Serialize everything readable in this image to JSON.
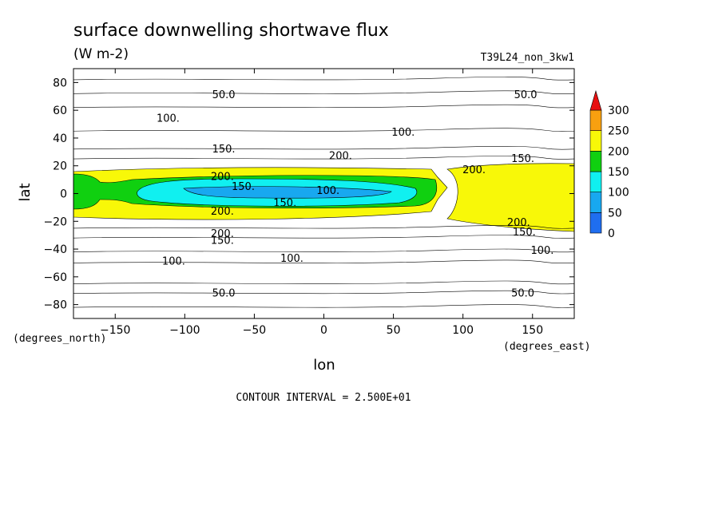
{
  "chart_data": {
    "type": "heatmap",
    "title": "surface downwelling shortwave flux",
    "subtitle": "(W m-2)",
    "run_label": "T39L24_non_3kw1",
    "xlabel": "lon",
    "ylabel": "lat",
    "x_unit_label": "(degrees_east)",
    "y_unit_label": "(degrees_north)",
    "xlim": [
      -180,
      180
    ],
    "ylim": [
      -90,
      90
    ],
    "x_ticks": [
      -150,
      -100,
      -50,
      0,
      50,
      100,
      150
    ],
    "y_ticks": [
      -80,
      -60,
      -40,
      -20,
      0,
      20,
      40,
      60,
      80
    ],
    "footer": "CONTOUR INTERVAL = 2.500E+01",
    "colorbar": {
      "levels": [
        0,
        50,
        100,
        150,
        200,
        250,
        300
      ],
      "colors": [
        "#1f6ef0",
        "#18a8f0",
        "#10f0f0",
        "#10d010",
        "#f8f808",
        "#f8a010"
      ],
      "overflow_color": "#e81010"
    },
    "zonal_bands": [
      {
        "lat_from": 80,
        "lat_to": 90,
        "value_class": 0
      },
      {
        "lat_from": 70,
        "lat_to": 80,
        "value_class": 0
      },
      {
        "lat_from": 55,
        "lat_to": 70,
        "value_class": 1
      },
      {
        "lat_from": 38,
        "lat_to": 55,
        "value_class": 2
      },
      {
        "lat_from": 28,
        "lat_to": 38,
        "value_class": 2
      },
      {
        "lat_from": 20,
        "lat_to": 28,
        "value_class": 3
      },
      {
        "lat_from": -20,
        "lat_to": 20,
        "value_class": 4
      },
      {
        "lat_from": -30,
        "lat_to": -20,
        "value_class": 3
      },
      {
        "lat_from": -40,
        "lat_to": -30,
        "value_class": 2
      },
      {
        "lat_from": -55,
        "lat_to": -40,
        "value_class": 2
      },
      {
        "lat_from": -70,
        "lat_to": -55,
        "value_class": 1
      },
      {
        "lat_from": -80,
        "lat_to": -70,
        "value_class": 0
      },
      {
        "lat_from": -90,
        "lat_to": -80,
        "value_class": 0
      }
    ],
    "contour_labels": [
      {
        "text": "50.0",
        "lon": -72,
        "lat": 71
      },
      {
        "text": "50.0",
        "lon": 145,
        "lat": 71
      },
      {
        "text": "100.",
        "lon": -112,
        "lat": 54
      },
      {
        "text": "100.",
        "lon": 57,
        "lat": 44
      },
      {
        "text": "150.",
        "lon": -72,
        "lat": 32
      },
      {
        "text": "150.",
        "lon": 143,
        "lat": 25
      },
      {
        "text": "200.",
        "lon": 12,
        "lat": 27
      },
      {
        "text": "200.",
        "lon": 108,
        "lat": 17
      },
      {
        "text": "200.",
        "lon": -73,
        "lat": 12
      },
      {
        "text": "150.",
        "lon": -58,
        "lat": 5
      },
      {
        "text": "100.",
        "lon": 3,
        "lat": 2
      },
      {
        "text": "150.",
        "lon": -28,
        "lat": -7
      },
      {
        "text": "200.",
        "lon": -73,
        "lat": -13
      },
      {
        "text": "200.",
        "lon": 140,
        "lat": -21
      },
      {
        "text": "150.",
        "lon": 144,
        "lat": -28
      },
      {
        "text": "200.",
        "lon": -73,
        "lat": -29
      },
      {
        "text": "150.",
        "lon": -73,
        "lat": -34
      },
      {
        "text": "100.",
        "lon": 157,
        "lat": -41
      },
      {
        "text": "100.",
        "lon": -108,
        "lat": -49
      },
      {
        "text": "100.",
        "lon": -23,
        "lat": -47
      },
      {
        "text": "50.0",
        "lon": -72,
        "lat": -72
      },
      {
        "text": "50.0",
        "lon": 143,
        "lat": -72
      }
    ]
  }
}
